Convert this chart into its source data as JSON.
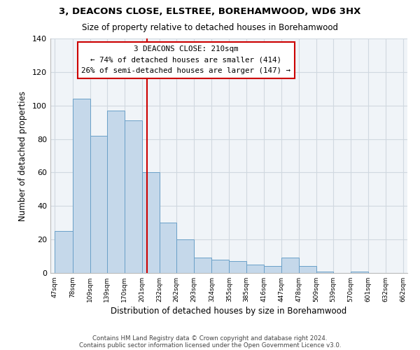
{
  "title": "3, DEACONS CLOSE, ELSTREE, BOREHAMWOOD, WD6 3HX",
  "subtitle": "Size of property relative to detached houses in Borehamwood",
  "xlabel": "Distribution of detached houses by size in Borehamwood",
  "ylabel": "Number of detached properties",
  "bar_edges": [
    47,
    78,
    109,
    139,
    170,
    201,
    232,
    262,
    293,
    324,
    355,
    385,
    416,
    447,
    478,
    509,
    539,
    570,
    601,
    632,
    662
  ],
  "bar_heights": [
    25,
    104,
    82,
    97,
    91,
    60,
    30,
    20,
    9,
    8,
    7,
    5,
    4,
    9,
    4,
    1,
    0,
    1,
    0,
    0
  ],
  "bar_color": "#c5d8ea",
  "bar_edgecolor": "#6aa0c8",
  "vline_x": 210,
  "vline_color": "#cc0000",
  "annotation_title": "3 DEACONS CLOSE: 210sqm",
  "annotation_line1": "← 74% of detached houses are smaller (414)",
  "annotation_line2": "26% of semi-detached houses are larger (147) →",
  "annotation_box_color": "#ffffff",
  "annotation_box_edgecolor": "#cc0000",
  "ylim": [
    0,
    140
  ],
  "yticks": [
    0,
    20,
    40,
    60,
    80,
    100,
    120,
    140
  ],
  "tick_labels": [
    "47sqm",
    "78sqm",
    "109sqm",
    "139sqm",
    "170sqm",
    "201sqm",
    "232sqm",
    "262sqm",
    "293sqm",
    "324sqm",
    "355sqm",
    "385sqm",
    "416sqm",
    "447sqm",
    "478sqm",
    "509sqm",
    "539sqm",
    "570sqm",
    "601sqm",
    "632sqm",
    "662sqm"
  ],
  "footer_line1": "Contains HM Land Registry data © Crown copyright and database right 2024.",
  "footer_line2": "Contains public sector information licensed under the Open Government Licence v3.0.",
  "background_color": "#ffffff",
  "axes_background": "#f0f4f8",
  "grid_color": "#d0d8e0"
}
